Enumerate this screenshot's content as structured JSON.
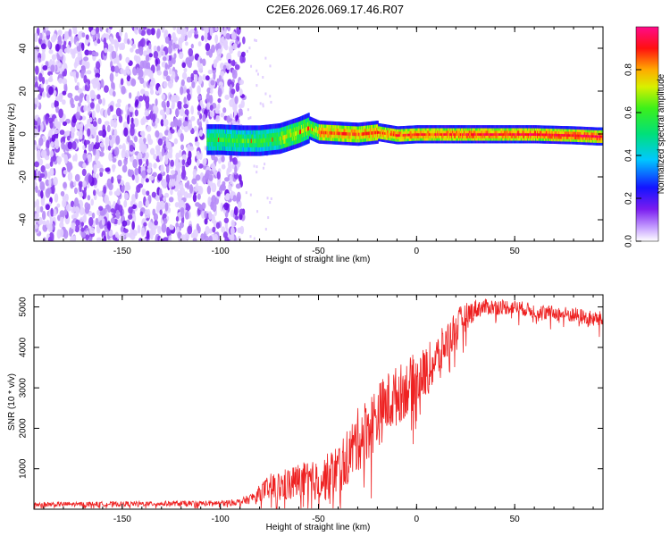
{
  "title": "C2E6.2026.069.17.46.R07",
  "chart_data": [
    {
      "type": "heatmap",
      "name": "spectrogram",
      "xlabel": "Height of straight line (km)",
      "ylabel": "Frequency (Hz)",
      "xlim": [
        -195,
        95
      ],
      "ylim": [
        -50,
        50
      ],
      "xticks": [
        -150,
        -100,
        -50,
        0,
        50
      ],
      "yticks": [
        -40,
        -20,
        0,
        20,
        40
      ],
      "noise_region": {
        "x_from": -195,
        "x_to": -88
      },
      "signal_track": {
        "start_x": -107,
        "x": [
          -107,
          -100,
          -90,
          -80,
          -70,
          -60,
          -55,
          -50,
          -40,
          -30,
          -20,
          -10,
          0,
          10,
          20,
          40,
          60,
          80,
          92
        ],
        "freq": [
          -2.5,
          -2.5,
          -3,
          -3,
          -2,
          1,
          3,
          1,
          0.5,
          0,
          1,
          -0.5,
          0,
          0,
          0,
          0,
          0,
          -0.5,
          -1
        ],
        "peak_freq_spread": 4
      },
      "colorbar": {
        "label": "Normalized spectral amplitude",
        "range": [
          0,
          1
        ],
        "ticks": [
          "0.0",
          "0.2",
          "0.4",
          "0.6",
          "0.8"
        ],
        "tick_values": [
          0.0,
          0.2,
          0.4,
          0.6,
          0.8
        ]
      }
    },
    {
      "type": "line",
      "name": "snr",
      "xlabel": "Height of straight line (km)",
      "ylabel": "SNR (10 * v/v)",
      "xlim": [
        -195,
        95
      ],
      "ylim": [
        0,
        5300
      ],
      "xticks": [
        -150,
        -100,
        -50,
        0,
        50
      ],
      "yticks": [
        1000,
        2000,
        3000,
        4000,
        5000
      ],
      "series": [
        {
          "name": "SNR",
          "color": "#ee2222",
          "x": [
            -195,
            -150,
            -100,
            -90,
            -85,
            -80,
            -75,
            -70,
            -60,
            -50,
            -45,
            -40,
            -35,
            -30,
            -25,
            -20,
            -15,
            -10,
            -5,
            0,
            5,
            10,
            15,
            20,
            25,
            30,
            35,
            40,
            50,
            60,
            70,
            80,
            90,
            95
          ],
          "y": [
            120,
            130,
            150,
            180,
            250,
            400,
            550,
            550,
            700,
            700,
            800,
            1000,
            1300,
            1700,
            2000,
            2300,
            2600,
            2800,
            3000,
            3200,
            3400,
            3700,
            4100,
            4500,
            4750,
            4950,
            5000,
            5000,
            5000,
            4900,
            4850,
            4800,
            4700,
            4700
          ],
          "noise": [
            60,
            60,
            70,
            80,
            120,
            200,
            320,
            400,
            450,
            500,
            600,
            650,
            700,
            800,
            800,
            800,
            800,
            750,
            700,
            700,
            650,
            600,
            500,
            450,
            350,
            250,
            200,
            200,
            180,
            180,
            180,
            200,
            200,
            200
          ]
        }
      ]
    }
  ]
}
